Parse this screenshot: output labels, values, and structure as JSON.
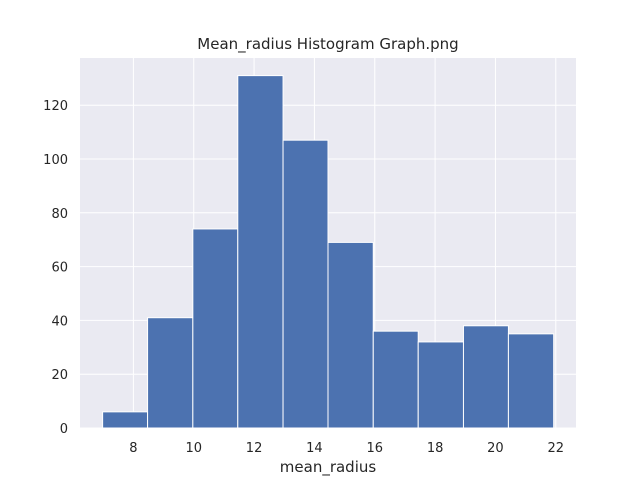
{
  "chart_data": {
    "type": "bar",
    "subtype": "histogram",
    "title": "Mean_radius Histogram Graph.png",
    "xlabel": "mean_radius",
    "ylabel": "",
    "bin_edges": [
      6.98,
      8.47,
      9.97,
      11.46,
      12.96,
      14.45,
      15.95,
      17.44,
      18.94,
      20.43,
      21.93
    ],
    "counts": [
      6,
      41,
      74,
      131,
      107,
      69,
      36,
      32,
      38,
      35
    ],
    "xlim": [
      6.23,
      22.67
    ],
    "ylim": [
      0,
      137.55
    ],
    "xticks": [
      8,
      10,
      12,
      14,
      16,
      18,
      20,
      22
    ],
    "yticks": [
      0,
      20,
      40,
      60,
      80,
      100,
      120
    ],
    "grid": true,
    "legend": "none",
    "colors": {
      "bar": "#4c72b0",
      "bar_edge": "#ffffff",
      "plot_background": "#eaeaf2",
      "grid": "#ffffff",
      "text": "#262626"
    }
  }
}
